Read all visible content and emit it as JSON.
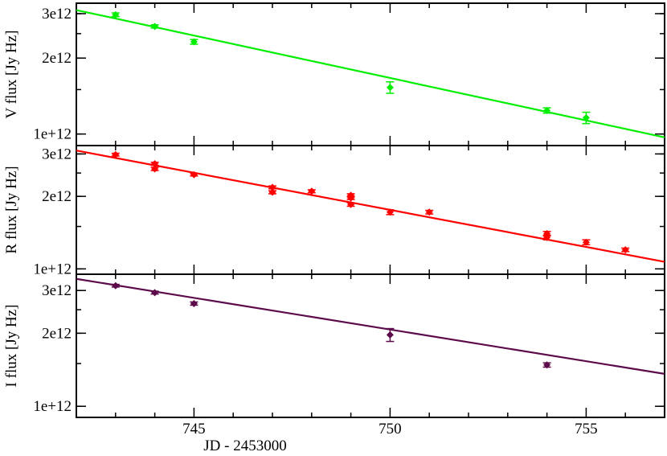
{
  "chart_data": {
    "type": "scatter",
    "xlabel": "JD - 2453000",
    "xlim": [
      742,
      757
    ],
    "x_ticks": [
      "745",
      "750",
      "755"
    ],
    "panels": [
      {
        "name": "V",
        "ylabel": "V flux [Jy Hz]",
        "color": "#00ee00",
        "ylim": [
          900000000000.0,
          3300000000000.0
        ],
        "y_tick_values": [
          1000000000000.0,
          2000000000000.0,
          3000000000000.0
        ],
        "y_tick_labels": [
          "1e+12",
          "2e12",
          "3e12"
        ],
        "points": [
          {
            "x": 743,
            "y": 2970000000000.0,
            "err": 50000000000.0
          },
          {
            "x": 744,
            "y": 2670000000000.0,
            "err": 40000000000.0
          },
          {
            "x": 745,
            "y": 2320000000000.0,
            "err": 50000000000.0
          },
          {
            "x": 750,
            "y": 1530000000000.0,
            "err": 80000000000.0
          },
          {
            "x": 754,
            "y": 1240000000000.0,
            "err": 30000000000.0
          },
          {
            "x": 755,
            "y": 1160000000000.0,
            "err": 60000000000.0
          }
        ],
        "fit": {
          "x": [
            742,
            757
          ],
          "y": [
            3100000000000.0,
            970000000000.0
          ]
        }
      },
      {
        "name": "R",
        "ylabel": "R flux [Jy Hz]",
        "color": "#ff0000",
        "ylim": [
          950000000000.0,
          3250000000000.0
        ],
        "y_tick_values": [
          1000000000000.0,
          2000000000000.0,
          3000000000000.0
        ],
        "y_tick_labels": [
          "1e+12",
          "2e12",
          "3e12"
        ],
        "points": [
          {
            "x": 743,
            "y": 2980000000000.0,
            "err": 40000000000.0
          },
          {
            "x": 744,
            "y": 2730000000000.0,
            "err": 40000000000.0
          },
          {
            "x": 744,
            "y": 2600000000000.0,
            "err": 40000000000.0
          },
          {
            "x": 745,
            "y": 2460000000000.0,
            "err": 30000000000.0
          },
          {
            "x": 747,
            "y": 2180000000000.0,
            "err": 30000000000.0
          },
          {
            "x": 747,
            "y": 2080000000000.0,
            "err": 30000000000.0
          },
          {
            "x": 748,
            "y": 2100000000000.0,
            "err": 30000000000.0
          },
          {
            "x": 749,
            "y": 2020000000000.0,
            "err": 30000000000.0
          },
          {
            "x": 749,
            "y": 1970000000000.0,
            "err": 30000000000.0
          },
          {
            "x": 749,
            "y": 1850000000000.0,
            "err": 30000000000.0
          },
          {
            "x": 750,
            "y": 1720000000000.0,
            "err": 40000000000.0
          },
          {
            "x": 751,
            "y": 1720000000000.0,
            "err": 30000000000.0
          },
          {
            "x": 754,
            "y": 1400000000000.0,
            "err": 30000000000.0
          },
          {
            "x": 754,
            "y": 1350000000000.0,
            "err": 30000000000.0
          },
          {
            "x": 755,
            "y": 1290000000000.0,
            "err": 30000000000.0
          },
          {
            "x": 756,
            "y": 1200000000000.0,
            "err": 20000000000.0
          }
        ],
        "fit": {
          "x": [
            742,
            757
          ],
          "y": [
            3100000000000.0,
            1070000000000.0
          ]
        }
      },
      {
        "name": "I",
        "ylabel": "I flux [Jy Hz]",
        "color": "#5c0a4a",
        "ylim": [
          900000000000.0,
          3500000000000.0
        ],
        "y_tick_values": [
          1000000000000.0,
          2000000000000.0,
          3000000000000.0
        ],
        "y_tick_labels": [
          "1e+12",
          "2e12",
          "3e12"
        ],
        "points": [
          {
            "x": 743,
            "y": 3140000000000.0,
            "err": 40000000000.0
          },
          {
            "x": 744,
            "y": 2940000000000.0,
            "err": 40000000000.0
          },
          {
            "x": 745,
            "y": 2650000000000.0,
            "err": 40000000000.0
          },
          {
            "x": 750,
            "y": 1970000000000.0,
            "err": 120000000000.0
          },
          {
            "x": 754,
            "y": 1480000000000.0,
            "err": 30000000000.0
          }
        ],
        "fit": {
          "x": [
            742,
            757
          ],
          "y": [
            3350000000000.0,
            1360000000000.0
          ]
        }
      }
    ]
  }
}
